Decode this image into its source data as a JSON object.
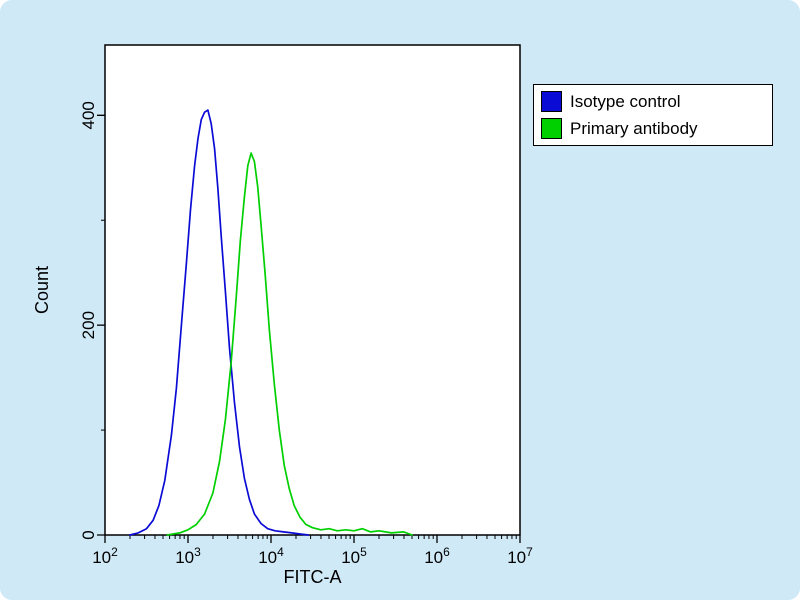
{
  "chart_data": {
    "type": "line",
    "title": "",
    "xlabel": "FITC-A",
    "ylabel": "Count",
    "x_scale": "log10",
    "xlim_log10": [
      2,
      7
    ],
    "ylim": [
      0,
      467
    ],
    "x_tick_exponents": [
      2,
      3,
      4,
      5,
      6,
      7
    ],
    "y_ticks": [
      0,
      200,
      400
    ],
    "y_minor_step": 100,
    "grid": false,
    "legend_position": "top-right-outside",
    "background_color": "#cfe9f6",
    "plot_background_color": "#ffffff",
    "axis_color": "#000000",
    "series": [
      {
        "name": "Isotype control",
        "color": "#0b0bd6",
        "points": [
          [
            2.3,
            0
          ],
          [
            2.4,
            2
          ],
          [
            2.5,
            6
          ],
          [
            2.58,
            14
          ],
          [
            2.65,
            28
          ],
          [
            2.72,
            52
          ],
          [
            2.8,
            95
          ],
          [
            2.86,
            140
          ],
          [
            2.92,
            200
          ],
          [
            2.98,
            258
          ],
          [
            3.03,
            310
          ],
          [
            3.08,
            352
          ],
          [
            3.12,
            378
          ],
          [
            3.16,
            396
          ],
          [
            3.2,
            403
          ],
          [
            3.24,
            405
          ],
          [
            3.28,
            392
          ],
          [
            3.32,
            368
          ],
          [
            3.36,
            330
          ],
          [
            3.4,
            285
          ],
          [
            3.45,
            232
          ],
          [
            3.5,
            178
          ],
          [
            3.56,
            126
          ],
          [
            3.62,
            84
          ],
          [
            3.68,
            54
          ],
          [
            3.74,
            34
          ],
          [
            3.8,
            20
          ],
          [
            3.88,
            11
          ],
          [
            3.96,
            6
          ],
          [
            4.05,
            4
          ],
          [
            4.15,
            3
          ],
          [
            4.25,
            2
          ],
          [
            4.35,
            1
          ],
          [
            4.45,
            0
          ]
        ]
      },
      {
        "name": "Primary antibody",
        "color": "#00cf00",
        "points": [
          [
            2.75,
            0
          ],
          [
            2.9,
            2
          ],
          [
            3.0,
            5
          ],
          [
            3.1,
            10
          ],
          [
            3.2,
            20
          ],
          [
            3.3,
            40
          ],
          [
            3.38,
            70
          ],
          [
            3.45,
            110
          ],
          [
            3.52,
            165
          ],
          [
            3.58,
            225
          ],
          [
            3.63,
            280
          ],
          [
            3.68,
            322
          ],
          [
            3.72,
            352
          ],
          [
            3.76,
            364
          ],
          [
            3.8,
            356
          ],
          [
            3.84,
            332
          ],
          [
            3.88,
            296
          ],
          [
            3.93,
            248
          ],
          [
            3.98,
            196
          ],
          [
            4.04,
            144
          ],
          [
            4.1,
            100
          ],
          [
            4.16,
            66
          ],
          [
            4.22,
            44
          ],
          [
            4.28,
            28
          ],
          [
            4.35,
            17
          ],
          [
            4.42,
            10
          ],
          [
            4.5,
            7
          ],
          [
            4.6,
            5
          ],
          [
            4.7,
            6
          ],
          [
            4.8,
            4
          ],
          [
            4.9,
            5
          ],
          [
            5.0,
            4
          ],
          [
            5.1,
            6
          ],
          [
            5.2,
            3
          ],
          [
            5.3,
            4
          ],
          [
            5.45,
            2
          ],
          [
            5.6,
            3
          ],
          [
            5.7,
            0
          ]
        ]
      }
    ]
  }
}
